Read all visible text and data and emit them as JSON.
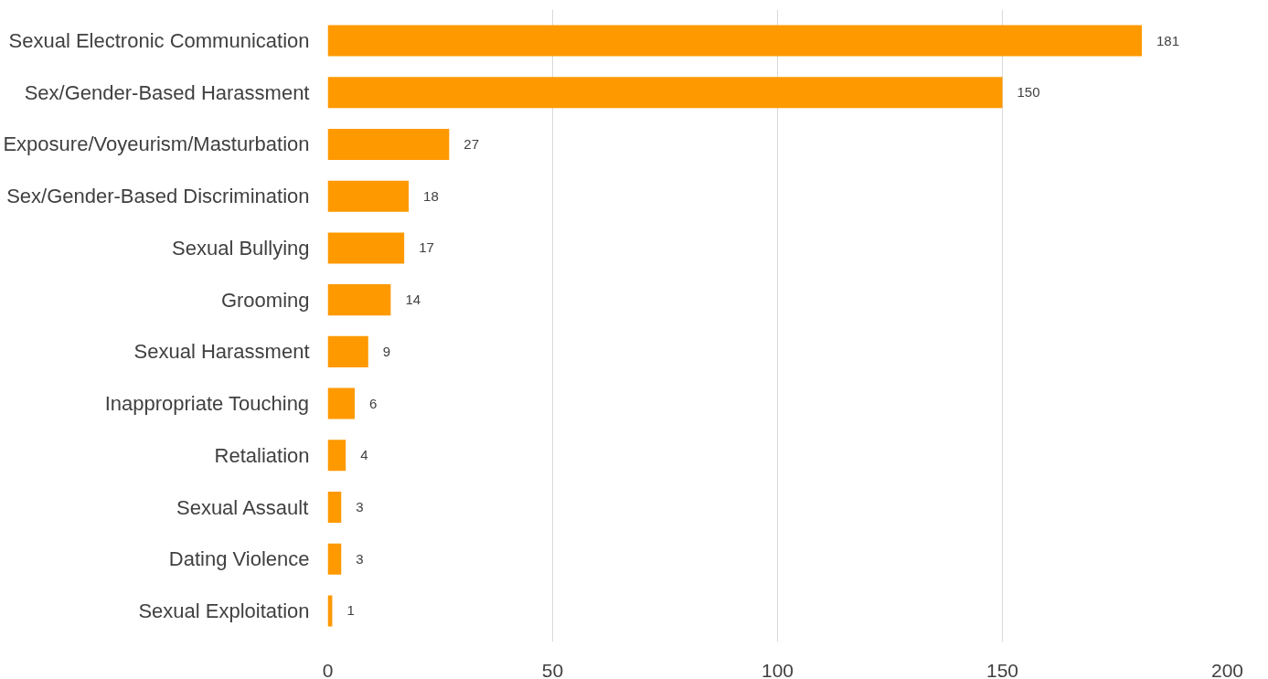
{
  "chart_data": {
    "type": "bar",
    "orientation": "horizontal",
    "categories": [
      "Sexual Electronic Communication",
      "Sex/Gender-Based Harassment",
      "Exposure/Voyeurism/Masturbation",
      "Sex/Gender-Based Discrimination",
      "Sexual Bullying",
      "Grooming",
      "Sexual Harassment",
      "Inappropriate Touching",
      "Retaliation",
      "Sexual Assault",
      "Dating Violence",
      "Sexual Exploitation"
    ],
    "values": [
      181,
      150,
      27,
      18,
      17,
      14,
      9,
      6,
      4,
      3,
      3,
      1
    ],
    "color": "#ff9900",
    "xlim": [
      0,
      200
    ],
    "xticks": [
      0,
      50,
      100,
      150,
      200
    ],
    "grid": "x",
    "data_labels": true
  }
}
